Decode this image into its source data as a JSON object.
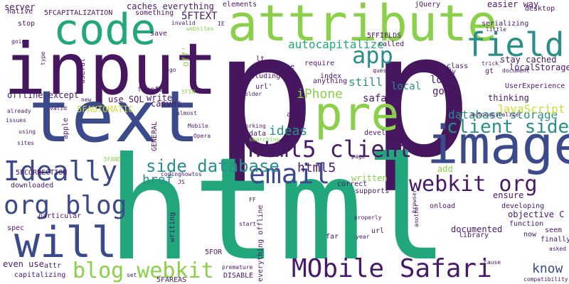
{
  "colors": {
    "background": "#ffffff",
    "purple": "#46175f",
    "indigo": "#3b4a8a",
    "teal": "#2a8f8a",
    "green": "#21a77b",
    "lime": "#8bd04a",
    "yellow": "#cbdc3a",
    "darkpurple": "#481869"
  },
  "words": [
    "p",
    "p",
    "html",
    "input",
    "text",
    "image",
    "attribute",
    "code",
    "pre",
    "will",
    "field",
    "app",
    "email",
    "Ideally",
    "org blog",
    "client side",
    "html5 client",
    "side database",
    "webkit org",
    "blog webkit",
    "MObile Safari",
    "database storage",
    "autocapitalize",
    "iPhone",
    "JavaScript",
    "know",
    "html5",
    "href",
    "ideas",
    "still",
    "safari",
    "local",
    "got",
    "love",
    "5FTEXT",
    "caches everything",
    "easier way",
    "server",
    "native",
    "5FCAPITALIZATION",
    "stop",
    "going",
    "type",
    "offline except",
    "5FAUTOMATIC",
    "use SQL",
    "write",
    "canvas",
    "firefox",
    "save",
    "invalid",
    "something",
    "websites",
    "IE",
    "elements",
    "jQuery",
    "desktop",
    "serializing",
    "little",
    "stay cached",
    "localStorage",
    "document",
    "UserExperience",
    "thinking",
    "5FFIELDS",
    "called",
    "require",
    "index",
    "question",
    "class",
    "ready",
    "lt",
    "produce",
    "url'",
    "including",
    "anything",
    "off'",
    "5FIN",
    "new",
    "valid",
    "useful",
    "already",
    "issues",
    "using",
    "sites",
    "apple",
    "GENERAL",
    "Mobile",
    "Opera",
    "working",
    "searching",
    "data",
    "able",
    "written",
    "developer",
    "page",
    "add",
    "correct",
    "supports",
    "autocapitalize'",
    "trick'",
    "gt",
    "ensure",
    "developing",
    "objective C",
    "function",
    "documented",
    "library",
    "now",
    "seem",
    "finally",
    "asked",
    "onload",
    "properly",
    "another",
    "browser",
    "far",
    "year",
    "url",
    "start",
    "FF",
    "JS",
    "codinghowtos",
    "5FAND",
    "5FCORRECTION",
    "downloaded",
    "particular",
    "spec",
    "writing",
    "even use",
    "attr",
    "capitalizing",
    "5FOR",
    "premature",
    "DISABLE",
    "5FAREAS",
    "set",
    "everything offline",
    "cause",
    "compatibility",
    "older",
    "almost",
    "ago"
  ]
}
